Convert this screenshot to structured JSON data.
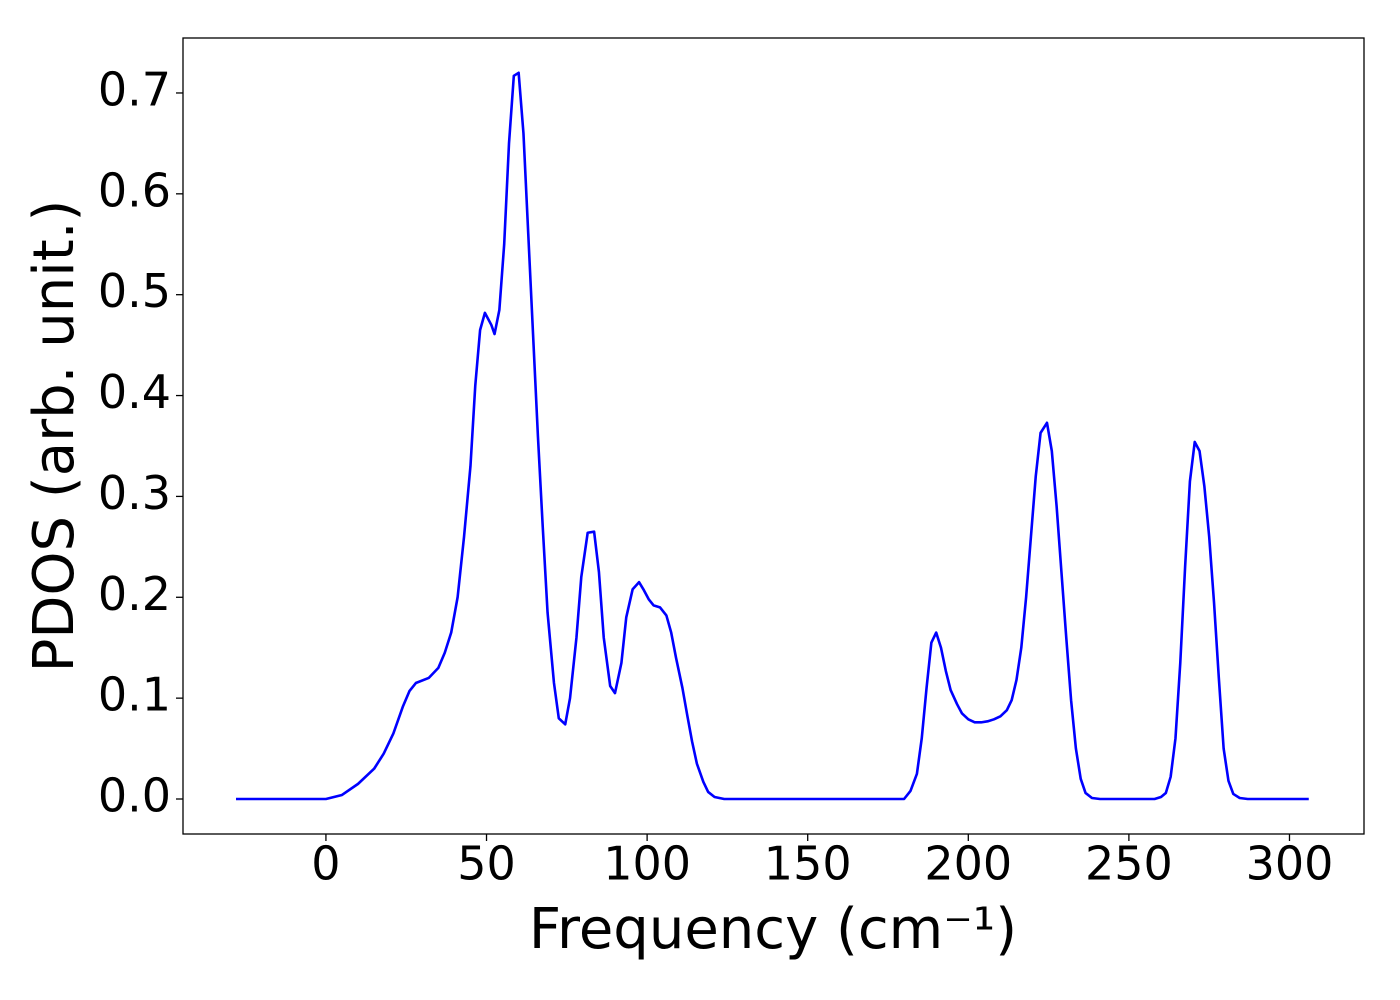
{
  "chart_data": {
    "type": "line",
    "xlabel": "Frequency (cm⁻¹)",
    "ylabel": "PDOS (arb. unit.)",
    "xlim": [
      -44.5,
      323.2
    ],
    "ylim": [
      -0.0347,
      0.7545
    ],
    "xticks": [
      0,
      50,
      100,
      150,
      200,
      250,
      300
    ],
    "yticks": [
      {
        "value": 0,
        "label": "0.0"
      },
      0.1,
      0.2,
      0.3,
      0.4,
      0.5,
      0.6,
      0.7
    ],
    "grid": false,
    "x": [
      -28,
      0,
      5,
      10,
      15,
      18,
      21,
      24,
      26,
      28,
      32,
      35,
      37,
      39,
      41,
      43,
      45,
      46.5,
      48,
      49.5,
      51.5,
      52.5,
      54,
      55.5,
      57,
      58.5,
      60,
      61.5,
      63,
      64.5,
      66,
      67.5,
      69,
      71,
      72.5,
      74.5,
      76,
      78,
      79.5,
      81.5,
      83.5,
      85,
      86.5,
      88.5,
      90,
      92,
      93.5,
      95.5,
      97.5,
      99,
      100.5,
      102,
      104,
      106,
      107.5,
      109,
      111,
      112.5,
      114,
      115.5,
      117.5,
      119,
      121,
      124,
      180,
      182,
      184,
      185.5,
      187,
      188.5,
      190,
      191.5,
      193,
      194.5,
      196.5,
      198,
      200,
      202,
      204,
      206,
      208,
      210,
      212,
      213.5,
      215,
      216.5,
      218,
      219.5,
      221,
      222.5,
      224.5,
      226,
      227.5,
      229,
      230.5,
      232,
      233.5,
      235,
      236.5,
      238.5,
      241,
      258,
      260,
      261.5,
      263,
      264.5,
      266,
      267.5,
      269,
      270.5,
      272,
      273.5,
      275,
      276.5,
      278,
      279.5,
      281,
      282.5,
      284.5,
      287,
      306
    ],
    "series": [
      {
        "color": "#0000ff",
        "values": [
          0,
          0,
          0.004,
          0.015,
          0.03,
          0.045,
          0.065,
          0.092,
          0.107,
          0.115,
          0.12,
          0.13,
          0.145,
          0.165,
          0.2,
          0.26,
          0.33,
          0.41,
          0.465,
          0.482,
          0.47,
          0.461,
          0.485,
          0.55,
          0.65,
          0.717,
          0.72,
          0.66,
          0.56,
          0.46,
          0.36,
          0.27,
          0.185,
          0.115,
          0.08,
          0.074,
          0.1,
          0.16,
          0.22,
          0.264,
          0.265,
          0.225,
          0.16,
          0.112,
          0.105,
          0.135,
          0.18,
          0.208,
          0.215,
          0.207,
          0.198,
          0.192,
          0.19,
          0.182,
          0.165,
          0.14,
          0.11,
          0.083,
          0.057,
          0.035,
          0.017,
          0.007,
          0.002,
          0,
          0,
          0.008,
          0.025,
          0.06,
          0.11,
          0.155,
          0.165,
          0.15,
          0.127,
          0.108,
          0.094,
          0.085,
          0.079,
          0.076,
          0.076,
          0.077,
          0.079,
          0.082,
          0.088,
          0.098,
          0.118,
          0.15,
          0.2,
          0.26,
          0.32,
          0.363,
          0.373,
          0.345,
          0.29,
          0.225,
          0.16,
          0.098,
          0.05,
          0.02,
          0.006,
          0.001,
          0,
          0,
          0.002,
          0.006,
          0.022,
          0.06,
          0.135,
          0.23,
          0.315,
          0.354,
          0.345,
          0.31,
          0.26,
          0.195,
          0.12,
          0.05,
          0.018,
          0.005,
          0.001,
          0,
          0
        ]
      }
    ]
  }
}
